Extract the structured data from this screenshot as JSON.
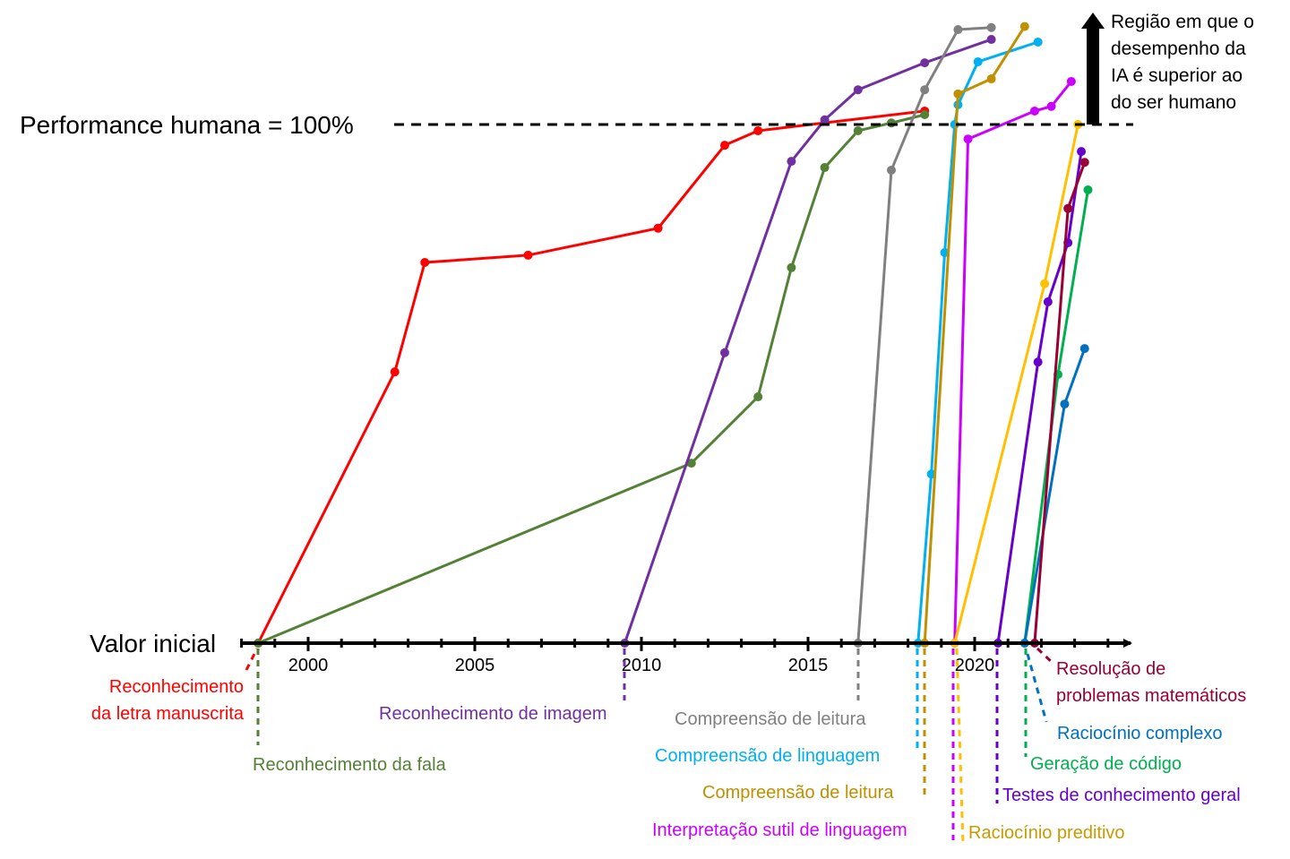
{
  "chart_data": {
    "type": "line",
    "title": "",
    "xlabel": "",
    "ylabel": "",
    "xlim": [
      1996.5,
      2025
    ],
    "ylim": [
      0,
      125
    ],
    "x_ticks": [
      2000,
      2005,
      2010,
      2015,
      2020
    ],
    "baseline_label": "Valor inicial",
    "human_label": "Performance humana = 100%",
    "human_value": 100,
    "region_note": [
      "Região em que o",
      "desempenho da",
      "IA é superior ao",
      "do ser humano"
    ],
    "series": [
      {
        "name": [
          "Reconhecimento",
          "da letra manuscrita"
        ],
        "color": "#ff0000",
        "x": [
          1998.5,
          2002.6,
          2003.5,
          2006.6,
          2010.5,
          2012.5,
          2013.5,
          2018.5
        ],
        "y": [
          0,
          52.3,
          73.4,
          74.8,
          80.0,
          96.0,
          98.8,
          102.6
        ]
      },
      {
        "name": [
          "Reconhecimento da fala"
        ],
        "color": "#538135",
        "x": [
          1998.5,
          2011.5,
          2013.5,
          2014.5,
          2015.5,
          2016.5,
          2017.5,
          2018.5
        ],
        "y": [
          0,
          34.7,
          47.5,
          72.4,
          91.7,
          98.8,
          100.3,
          101.9
        ]
      },
      {
        "name": [
          "Reconhecimento de imagem"
        ],
        "color": "#7030a0",
        "x": [
          2009.5,
          2012.5,
          2014.5,
          2015.5,
          2016.5,
          2018.5,
          2020.5
        ],
        "y": [
          0,
          56.0,
          92.9,
          100.9,
          106.7,
          111.9,
          116.4
        ]
      },
      {
        "name": [
          "Compreensão de leitura"
        ],
        "color": "#808080",
        "x": [
          2016.5,
          2017.5,
          2018.5,
          2019.5,
          2020.5
        ],
        "y": [
          0,
          91.2,
          106.7,
          118.3,
          118.7
        ]
      },
      {
        "name": [
          "Compreensão de linguagem"
        ],
        "color": "#00b0f0",
        "x": [
          2018.3,
          2018.7,
          2019.1,
          2019.4,
          2019.5,
          2020.1,
          2021.9
        ],
        "y": [
          0,
          32.6,
          75.3,
          100,
          103.8,
          112.1,
          115.9
        ]
      },
      {
        "name": [
          "Compreensão de leitura"
        ],
        "color": "#bf9000",
        "x": [
          2018.5,
          2019.5,
          2020.5,
          2021.5
        ],
        "y": [
          0,
          105.9,
          108.8,
          118.9
        ]
      },
      {
        "name": [
          "Interpretação sutil de linguagem"
        ],
        "color": "#cc00ff",
        "x": [
          2019.4,
          2019.8,
          2021.8,
          2022.3,
          2022.9
        ],
        "y": [
          0,
          97.2,
          102.6,
          103.5,
          108.3
        ]
      },
      {
        "name": [
          "Raciocínio preditivo"
        ],
        "color": "#ffc000",
        "label_color": "#c99a00",
        "x": [
          2019.4,
          2022.1,
          2023.1
        ],
        "y": [
          0,
          69.3,
          100
        ]
      },
      {
        "name": [
          "Testes de conhecimento geral"
        ],
        "color": "#6600cc",
        "x": [
          2020.7,
          2021.9,
          2022.2,
          2022.8,
          2023.2
        ],
        "y": [
          0,
          54.2,
          65.8,
          77.2,
          94.8
        ]
      },
      {
        "name": [
          "Geração de código"
        ],
        "color": "#00b050",
        "start_color": "#92d050",
        "x": [
          2021.5,
          2022.5,
          2023.4
        ],
        "y": [
          0,
          51.8,
          87.4
        ]
      },
      {
        "name": [
          "Raciocínio complexo"
        ],
        "color": "#0070c0",
        "x": [
          2021.5,
          2022.7,
          2023.3
        ],
        "y": [
          0,
          46.1,
          56.8
        ]
      },
      {
        "name": [
          "Resolução de",
          "problemas matemáticos"
        ],
        "color": "#990033",
        "x": [
          2021.8,
          2022.8,
          2023.3
        ],
        "y": [
          0,
          83.8,
          92.7
        ]
      }
    ]
  }
}
